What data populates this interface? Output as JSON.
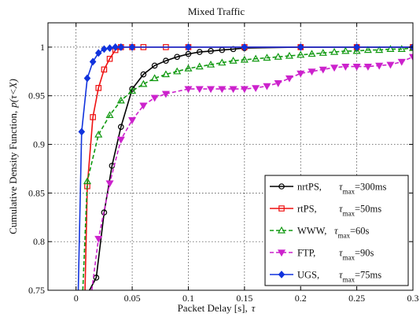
{
  "chart_data": {
    "type": "line",
    "title": "Mixed Traffic",
    "xlabel": "Packet Delay [s],",
    "xlabel_symbol": "τ",
    "ylabel": "Cumulative Density Function,",
    "ylabel_expr": "p(τ<X)",
    "xlim": [
      -0.025,
      0.3
    ],
    "ylim": [
      0.75,
      1.025
    ],
    "xticks": [
      0,
      0.05,
      0.1,
      0.15,
      0.2,
      0.25,
      0.3
    ],
    "xtick_labels": [
      "0",
      "0.05",
      "0.1",
      "0.15",
      "0.2",
      "0.25",
      "0.3"
    ],
    "yticks": [
      0.75,
      0.8,
      0.85,
      0.9,
      0.95,
      1
    ],
    "ytick_labels": [
      "0.75",
      "0.8",
      "0.85",
      "0.9",
      "0.95",
      "1"
    ],
    "grid": true,
    "legend_position": "bottom-right",
    "series": [
      {
        "name": "nrtPS,",
        "tau_label": "τ",
        "tau_sub": "max",
        "tau_value": "=300ms",
        "color": "#000000",
        "marker": "circle",
        "dash": "solid",
        "x": [
          0.012,
          0.018,
          0.025,
          0.032,
          0.04,
          0.05,
          0.06,
          0.07,
          0.08,
          0.09,
          0.1,
          0.11,
          0.12,
          0.13,
          0.14,
          0.15,
          0.2,
          0.25,
          0.3
        ],
        "y": [
          0.75,
          0.763,
          0.83,
          0.878,
          0.918,
          0.957,
          0.972,
          0.981,
          0.986,
          0.99,
          0.993,
          0.995,
          0.996,
          0.997,
          0.998,
          0.999,
          1.0,
          1.0,
          1.0
        ]
      },
      {
        "name": "rtPS,",
        "tau_label": "τ",
        "tau_sub": "max",
        "tau_value": "=50ms",
        "color": "#ee1111",
        "marker": "square",
        "dash": "solid",
        "x": [
          0.008,
          0.01,
          0.015,
          0.02,
          0.025,
          0.03,
          0.035,
          0.04,
          0.05,
          0.06,
          0.08,
          0.1,
          0.15,
          0.2,
          0.25,
          0.3
        ],
        "y": [
          0.75,
          0.857,
          0.928,
          0.958,
          0.977,
          0.988,
          0.997,
          1.0,
          1.0,
          1.0,
          1.0,
          1.0,
          1.0,
          1.0,
          1.0,
          1.0
        ]
      },
      {
        "name": "WWW,",
        "tau_label": "τ",
        "tau_sub": "max",
        "tau_value": "=60s",
        "color": "#119911",
        "marker": "triangle-up",
        "dash": "dashed",
        "x": [
          0.006,
          0.01,
          0.02,
          0.03,
          0.04,
          0.05,
          0.06,
          0.07,
          0.08,
          0.09,
          0.1,
          0.11,
          0.12,
          0.13,
          0.14,
          0.15,
          0.16,
          0.17,
          0.18,
          0.19,
          0.2,
          0.21,
          0.22,
          0.23,
          0.24,
          0.25,
          0.26,
          0.27,
          0.28,
          0.29,
          0.3
        ],
        "y": [
          0.75,
          0.862,
          0.91,
          0.93,
          0.945,
          0.955,
          0.962,
          0.968,
          0.972,
          0.975,
          0.978,
          0.98,
          0.982,
          0.984,
          0.986,
          0.987,
          0.988,
          0.989,
          0.99,
          0.991,
          0.992,
          0.993,
          0.994,
          0.995,
          0.996,
          0.996,
          0.997,
          0.997,
          0.998,
          0.998,
          0.999
        ]
      },
      {
        "name": "FTP,",
        "tau_label": "τ",
        "tau_sub": "max",
        "tau_value": "=90s",
        "color": "#cc22cc",
        "marker": "triangle-down",
        "dash": "dashed",
        "x": [
          0.014,
          0.02,
          0.03,
          0.04,
          0.05,
          0.06,
          0.07,
          0.08,
          0.1,
          0.11,
          0.12,
          0.13,
          0.14,
          0.15,
          0.16,
          0.17,
          0.18,
          0.19,
          0.2,
          0.21,
          0.22,
          0.23,
          0.24,
          0.25,
          0.26,
          0.27,
          0.28,
          0.29,
          0.3
        ],
        "y": [
          0.75,
          0.803,
          0.86,
          0.905,
          0.925,
          0.94,
          0.948,
          0.952,
          0.957,
          0.957,
          0.957,
          0.957,
          0.957,
          0.957,
          0.958,
          0.96,
          0.963,
          0.968,
          0.973,
          0.975,
          0.977,
          0.979,
          0.98,
          0.98,
          0.98,
          0.981,
          0.982,
          0.985,
          0.99
        ]
      },
      {
        "name": "UGS,",
        "tau_label": "τ",
        "tau_sub": "max",
        "tau_value": "=75ms",
        "color": "#1133dd",
        "marker": "diamond",
        "dash": "solid",
        "x": [
          0.002,
          0.005,
          0.01,
          0.015,
          0.02,
          0.025,
          0.03,
          0.035,
          0.04,
          0.05,
          0.1,
          0.15,
          0.2,
          0.25,
          0.3
        ],
        "y": [
          0.75,
          0.913,
          0.968,
          0.985,
          0.994,
          0.998,
          0.999,
          1.0,
          1.0,
          1.0,
          1.0,
          1.0,
          1.0,
          1.0,
          1.0
        ]
      }
    ]
  }
}
